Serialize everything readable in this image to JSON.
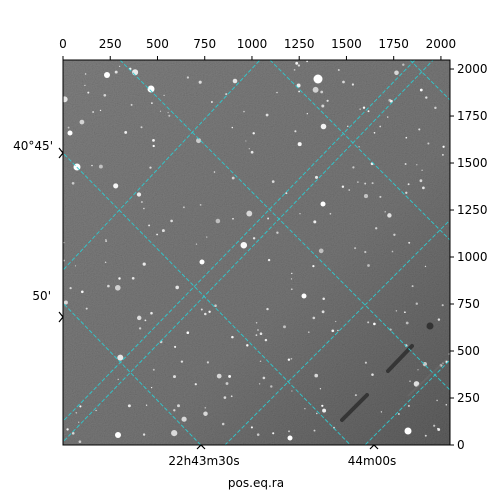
{
  "chart_data": {
    "type": "image",
    "title": "",
    "xlabel": "pos.eq.ra",
    "ylabel": "",
    "pixel_axes": {
      "x_ticks": [
        0,
        250,
        500,
        750,
        1000,
        1250,
        1500,
        1750,
        2000
      ],
      "y_ticks": [
        0,
        250,
        500,
        750,
        1000,
        1250,
        1500,
        1750,
        2000
      ],
      "xlim": [
        0,
        2048
      ],
      "ylim": [
        0,
        2048
      ]
    },
    "world_axes": {
      "ra_ticks": [
        "22h43m30s",
        "44m00s"
      ],
      "dec_ticks": [
        "40°45'",
        "50'"
      ]
    },
    "grid": true,
    "grid_color": "#2ecbd0",
    "image_colormap": "gray",
    "background_gray": "#7a7a7a"
  }
}
